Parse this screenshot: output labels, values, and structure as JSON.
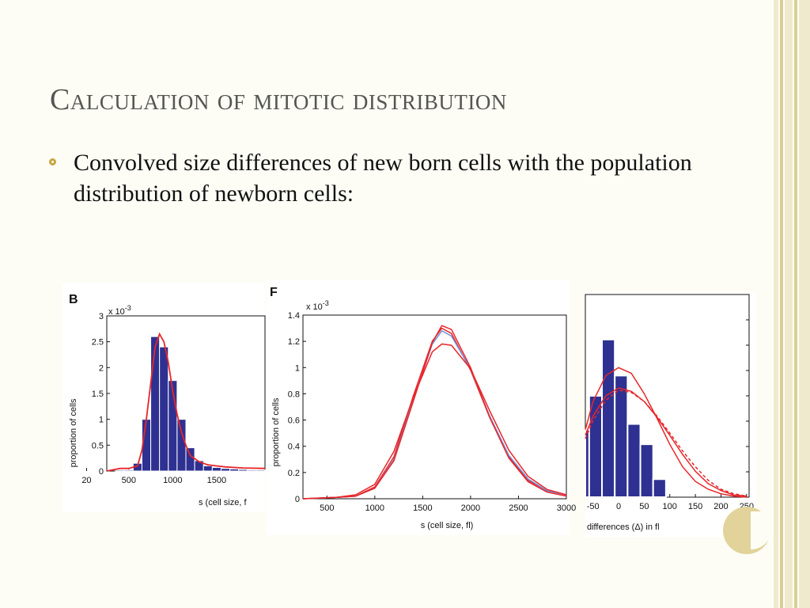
{
  "slide": {
    "title": "Calculation of mitotic distribution",
    "bullet": "Convolved size differences of new born cells with the population distribution of newborn cells:"
  },
  "colors": {
    "bar": "#2e3191",
    "red_curve": "#e8262a",
    "blue_curve": "#6d8fd8",
    "title": "#555552",
    "bullet": "#c9a53f",
    "stripe_light": "#efeacd",
    "stripe_dark": "#d9cf96"
  },
  "chart_data": [
    {
      "type": "bar",
      "panel_label": "B",
      "exponent_label": "x 10^-3",
      "ylabel": "proportion of cells",
      "xlabel": "s (cell size, f",
      "x_ticks": [
        "500",
        "1000",
        "1500",
        "20"
      ],
      "y_ticks": [
        "0",
        "0.5",
        "1",
        "1.5",
        "2",
        "2.5",
        "3"
      ],
      "xlim": [
        250,
        2050
      ],
      "ylim": [
        0,
        3
      ],
      "bin_width": 100,
      "categories": [
        400,
        500,
        600,
        700,
        800,
        900,
        1000,
        1100,
        1200,
        1300,
        1400,
        1500,
        1600,
        1700,
        1800,
        1900,
        2000
      ],
      "values": [
        0.02,
        0.02,
        0.15,
        1.0,
        2.6,
        2.4,
        1.75,
        1.0,
        0.45,
        0.2,
        0.1,
        0.07,
        0.05,
        0.04,
        0.03,
        0.02,
        0.02
      ],
      "curve": {
        "name": "",
        "x": [
          250,
          400,
          500,
          600,
          650,
          700,
          750,
          800,
          850,
          900,
          950,
          1000,
          1050,
          1100,
          1150,
          1200,
          1300,
          1400,
          1500,
          1600,
          1800,
          2050
        ],
        "y": [
          0.0,
          0.05,
          0.05,
          0.1,
          0.4,
          1.0,
          1.7,
          2.4,
          2.65,
          2.5,
          2.1,
          1.55,
          1.1,
          0.75,
          0.5,
          0.3,
          0.18,
          0.12,
          0.1,
          0.08,
          0.06,
          0.05
        ]
      }
    },
    {
      "type": "line",
      "panel_label": "F",
      "exponent_label": "x 10^-3",
      "ylabel": "proportion of cells",
      "xlabel": "s (cell size, fl)",
      "x_ticks": [
        "500",
        "1000",
        "1500",
        "2000",
        "2500",
        "3000"
      ],
      "y_ticks": [
        "0",
        "0.2",
        "0.4",
        "0.6",
        "0.8",
        "1",
        "1.2",
        "1.4"
      ],
      "xlim": [
        250,
        3000
      ],
      "ylim": [
        0,
        1.4
      ],
      "series": [
        {
          "color": "red",
          "x": [
            250,
            600,
            800,
            1000,
            1200,
            1400,
            1600,
            1700,
            1800,
            2000,
            2200,
            2400,
            2600,
            2800,
            3000
          ],
          "y": [
            0.0,
            0.01,
            0.02,
            0.09,
            0.32,
            0.78,
            1.2,
            1.3,
            1.26,
            0.98,
            0.62,
            0.32,
            0.14,
            0.06,
            0.03
          ]
        },
        {
          "color": "blue",
          "x": [
            250,
            600,
            800,
            1000,
            1200,
            1400,
            1600,
            1700,
            1800,
            2000,
            2200,
            2400,
            2600,
            2800,
            3000
          ],
          "y": [
            0.0,
            0.01,
            0.02,
            0.08,
            0.3,
            0.75,
            1.18,
            1.28,
            1.24,
            0.99,
            0.63,
            0.33,
            0.15,
            0.06,
            0.03
          ]
        },
        {
          "color": "red",
          "x": [
            250,
            600,
            800,
            1000,
            1200,
            1400,
            1600,
            1700,
            1800,
            2000,
            2200,
            2400,
            2600,
            2800,
            3000
          ],
          "y": [
            0.0,
            0.01,
            0.03,
            0.11,
            0.36,
            0.77,
            1.12,
            1.18,
            1.17,
            0.99,
            0.67,
            0.37,
            0.17,
            0.07,
            0.03
          ]
        },
        {
          "color": "red",
          "x": [
            250,
            600,
            800,
            1000,
            1200,
            1400,
            1600,
            1700,
            1800,
            2000,
            2200,
            2400,
            2600,
            2800,
            3000
          ],
          "y": [
            0.0,
            0.01,
            0.02,
            0.08,
            0.29,
            0.74,
            1.19,
            1.32,
            1.29,
            1.0,
            0.62,
            0.31,
            0.13,
            0.05,
            0.02
          ]
        }
      ]
    },
    {
      "type": "bar",
      "xlabel": "differences (Δ) in fl",
      "x_ticks": [
        "-50",
        "0",
        "50",
        "100",
        "150",
        "200",
        "250"
      ],
      "xlim": [
        -65,
        255
      ],
      "ylim": [
        0,
        1.8
      ],
      "bin_width": 25,
      "categories": [
        -70,
        -45,
        -20,
        5,
        30,
        55,
        80,
        105,
        130
      ],
      "values": [
        0.6,
        0.9,
        1.4,
        1.08,
        0.65,
        0.47,
        0.16,
        0.0,
        0.0
      ],
      "curves": [
        {
          "style": "solid",
          "x": [
            -65,
            -50,
            -25,
            0,
            25,
            50,
            75,
            100,
            125,
            150,
            175,
            200,
            225,
            250
          ],
          "y": [
            0.6,
            0.85,
            1.08,
            1.15,
            1.1,
            0.92,
            0.7,
            0.47,
            0.27,
            0.14,
            0.07,
            0.03,
            0.01,
            0.0
          ]
        },
        {
          "style": "solid",
          "x": [
            -65,
            -50,
            -25,
            0,
            25,
            50,
            75,
            100,
            125,
            150,
            175,
            200,
            225,
            250
          ],
          "y": [
            0.55,
            0.72,
            0.9,
            0.97,
            0.94,
            0.85,
            0.71,
            0.55,
            0.38,
            0.23,
            0.12,
            0.06,
            0.02,
            0.01
          ]
        },
        {
          "style": "dashed",
          "x": [
            -65,
            -50,
            -25,
            0,
            25,
            50,
            75,
            100,
            125,
            150,
            175,
            200,
            225,
            250
          ],
          "y": [
            0.52,
            0.68,
            0.86,
            0.95,
            0.93,
            0.85,
            0.72,
            0.57,
            0.41,
            0.27,
            0.15,
            0.07,
            0.03,
            0.01
          ]
        }
      ]
    }
  ]
}
